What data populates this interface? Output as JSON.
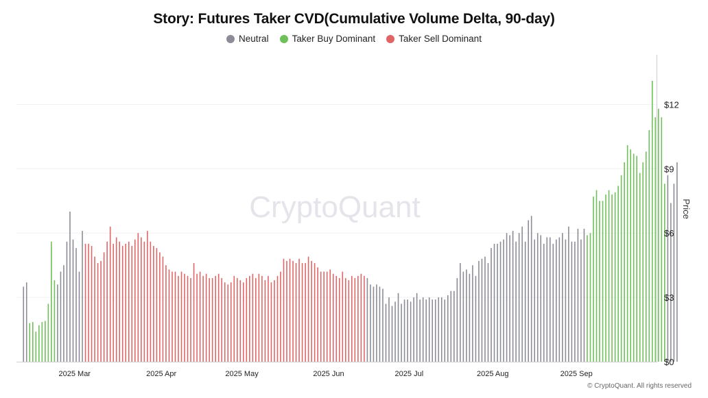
{
  "chart_data": {
    "type": "bar",
    "title": "Story: Futures Taker CVD(Cumulative Volume Delta, 90-day)",
    "ylabel": "Price",
    "xlabel": "",
    "ylim": [
      0,
      14.5
    ],
    "yticks": [
      0,
      3,
      6,
      9,
      12
    ],
    "ytick_labels": [
      "$0",
      "$3",
      "$6",
      "$9",
      "$12"
    ],
    "xlim": [
      0,
      202
    ],
    "xticks": [
      {
        "x": 16.5,
        "label": "2025 Mar"
      },
      {
        "x": 44.5,
        "label": "2025 Apr"
      },
      {
        "x": 70.5,
        "label": "2025 May"
      },
      {
        "x": 98.5,
        "label": "2025 Jun"
      },
      {
        "x": 124.5,
        "label": "2025 Jul"
      },
      {
        "x": 151.5,
        "label": "2025 Aug"
      },
      {
        "x": 178.5,
        "label": "2025 Sep"
      }
    ],
    "grid": true,
    "legend_position": "top-center",
    "watermark": "CryptoQuant",
    "series": [
      {
        "name": "Neutral",
        "color": "#8c8c96"
      },
      {
        "name": "Taker Buy Dominant",
        "color": "#6fbf5a"
      },
      {
        "name": "Taker Sell Dominant",
        "color": "#e06666"
      }
    ],
    "values": [
      3.5,
      3.7,
      1.8,
      1.85,
      1.4,
      1.7,
      1.85,
      1.9,
      2.7,
      5.6,
      3.8,
      3.6,
      4.2,
      4.5,
      5.6,
      7.0,
      5.7,
      5.3,
      4.2,
      6.1,
      5.5,
      5.5,
      5.4,
      4.9,
      4.6,
      4.7,
      5.1,
      5.6,
      6.3,
      5.5,
      5.8,
      5.6,
      5.4,
      5.5,
      5.6,
      5.4,
      5.7,
      6.0,
      5.8,
      5.6,
      6.1,
      5.6,
      5.4,
      5.3,
      5.1,
      4.9,
      4.5,
      4.3,
      4.2,
      4.2,
      4.0,
      4.2,
      4.1,
      4.0,
      3.9,
      4.6,
      4.1,
      4.2,
      4.0,
      4.1,
      3.9,
      3.9,
      4.0,
      4.1,
      3.9,
      3.7,
      3.6,
      3.7,
      4.0,
      3.9,
      3.8,
      3.7,
      3.9,
      4.0,
      4.1,
      3.9,
      4.1,
      4.0,
      3.8,
      4.0,
      3.7,
      3.8,
      4.0,
      4.2,
      4.8,
      4.7,
      4.8,
      4.7,
      4.6,
      4.8,
      4.6,
      4.6,
      4.9,
      4.7,
      4.6,
      4.4,
      4.2,
      4.2,
      4.2,
      4.3,
      4.1,
      4.0,
      3.9,
      4.2,
      3.9,
      3.8,
      4.0,
      3.9,
      4.0,
      4.1,
      4.0,
      3.9,
      3.6,
      3.5,
      3.6,
      3.5,
      3.4,
      2.7,
      3.0,
      2.6,
      2.8,
      3.2,
      2.7,
      2.9,
      2.9,
      2.8,
      3.0,
      3.2,
      2.9,
      3.0,
      2.9,
      3.0,
      2.9,
      2.9,
      3.0,
      3.0,
      2.9,
      3.1,
      3.3,
      3.3,
      3.9,
      4.6,
      4.2,
      4.3,
      4.1,
      4.5,
      4.0,
      4.7,
      4.8,
      4.9,
      4.6,
      5.3,
      5.5,
      5.5,
      5.6,
      5.7,
      6.0,
      5.9,
      6.1,
      5.6,
      6.0,
      6.3,
      5.6,
      6.6,
      6.8,
      5.7,
      6.0,
      5.9,
      5.5,
      5.8,
      5.8,
      5.5,
      5.7,
      5.8,
      6.0,
      5.7,
      6.3,
      5.6,
      5.6,
      6.2,
      5.7,
      6.2,
      5.9,
      6.0,
      7.7,
      8.0,
      7.5,
      7.5,
      7.8,
      8.0,
      7.8,
      7.9,
      8.2,
      8.7,
      9.3,
      10.1,
      9.9,
      9.7,
      9.6,
      8.8,
      9.3,
      9.8,
      10.8,
      13.1,
      11.4,
      11.8,
      11.4,
      8.3,
      8.7,
      7.4,
      8.3,
      9.3
    ]
  },
  "bar_colors": [
    "n",
    "n",
    "b",
    "b",
    "b",
    "b",
    "b",
    "b",
    "b",
    "b",
    "b",
    "n",
    "n",
    "n",
    "n",
    "n",
    "n",
    "n",
    "n",
    "n",
    "s",
    "s",
    "s",
    "s",
    "s",
    "s",
    "s",
    "s",
    "s",
    "s",
    "s",
    "s",
    "s",
    "s",
    "s",
    "s",
    "s",
    "s",
    "s",
    "s",
    "s",
    "s",
    "s",
    "s",
    "s",
    "s",
    "s",
    "s",
    "s",
    "s",
    "s",
    "s",
    "s",
    "s",
    "s",
    "s",
    "s",
    "s",
    "s",
    "s",
    "s",
    "s",
    "s",
    "s",
    "s",
    "s",
    "s",
    "s",
    "s",
    "s",
    "s",
    "s",
    "s",
    "s",
    "s",
    "s",
    "s",
    "s",
    "s",
    "s",
    "s",
    "s",
    "s",
    "s",
    "s",
    "s",
    "s",
    "s",
    "s",
    "s",
    "s",
    "s",
    "s",
    "s",
    "s",
    "s",
    "s",
    "s",
    "s",
    "s",
    "s",
    "s",
    "s",
    "s",
    "s",
    "s",
    "s",
    "s",
    "s",
    "s",
    "s",
    "n",
    "n",
    "n",
    "n",
    "n",
    "n",
    "n",
    "n",
    "n",
    "n",
    "n",
    "n",
    "n",
    "n",
    "n",
    "n",
    "n",
    "n",
    "n",
    "n",
    "n",
    "n",
    "n",
    "n",
    "n",
    "n",
    "n",
    "n",
    "n",
    "n",
    "n",
    "n",
    "n",
    "n",
    "n",
    "n",
    "n",
    "n",
    "n",
    "n",
    "n",
    "n",
    "n",
    "n",
    "n",
    "n",
    "n",
    "n",
    "n",
    "n",
    "n",
    "n",
    "n",
    "n",
    "n",
    "n",
    "n",
    "n",
    "n",
    "n",
    "n",
    "n",
    "n",
    "n",
    "n",
    "n",
    "n",
    "n",
    "n",
    "n",
    "n",
    "b",
    "b",
    "b",
    "b",
    "b",
    "b",
    "b",
    "b",
    "b",
    "b",
    "b",
    "b",
    "b",
    "b",
    "b",
    "b",
    "b",
    "b",
    "b",
    "b",
    "b",
    "b",
    "b",
    "b",
    "b",
    "b"
  ],
  "credit": "© CryptoQuant. All rights reserved"
}
